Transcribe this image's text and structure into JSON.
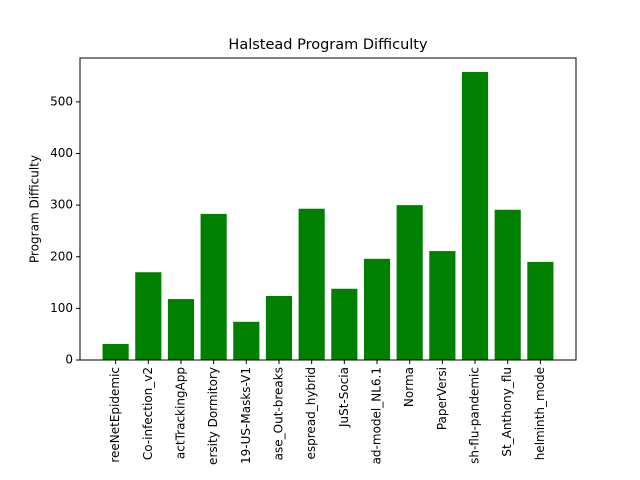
{
  "chart_data": {
    "type": "bar",
    "title": "Halstead Program Difficulty",
    "ylabel": "Program Difficulty",
    "categories": [
      "reeNetEpidemic",
      "Co-infection_v2",
      "actTrackingApp",
      "ersity Dormitory",
      "19-US-Masks-V1",
      "ase_Out-breaks",
      "espread_hybrid",
      "JuSt-Socia",
      "ad-model_NL6.1",
      "Norma",
      "PaperVersi",
      "sh-flu-pandemic",
      "St_Anthony_flu",
      "helminth_mode"
    ],
    "values": [
      31,
      170,
      118,
      283,
      74,
      124,
      293,
      138,
      196,
      300,
      211,
      558,
      291,
      190
    ],
    "color": "#008000",
    "ylim": [
      0,
      585
    ],
    "yticks": [
      0,
      100,
      200,
      300,
      400,
      500
    ],
    "grid": false
  }
}
